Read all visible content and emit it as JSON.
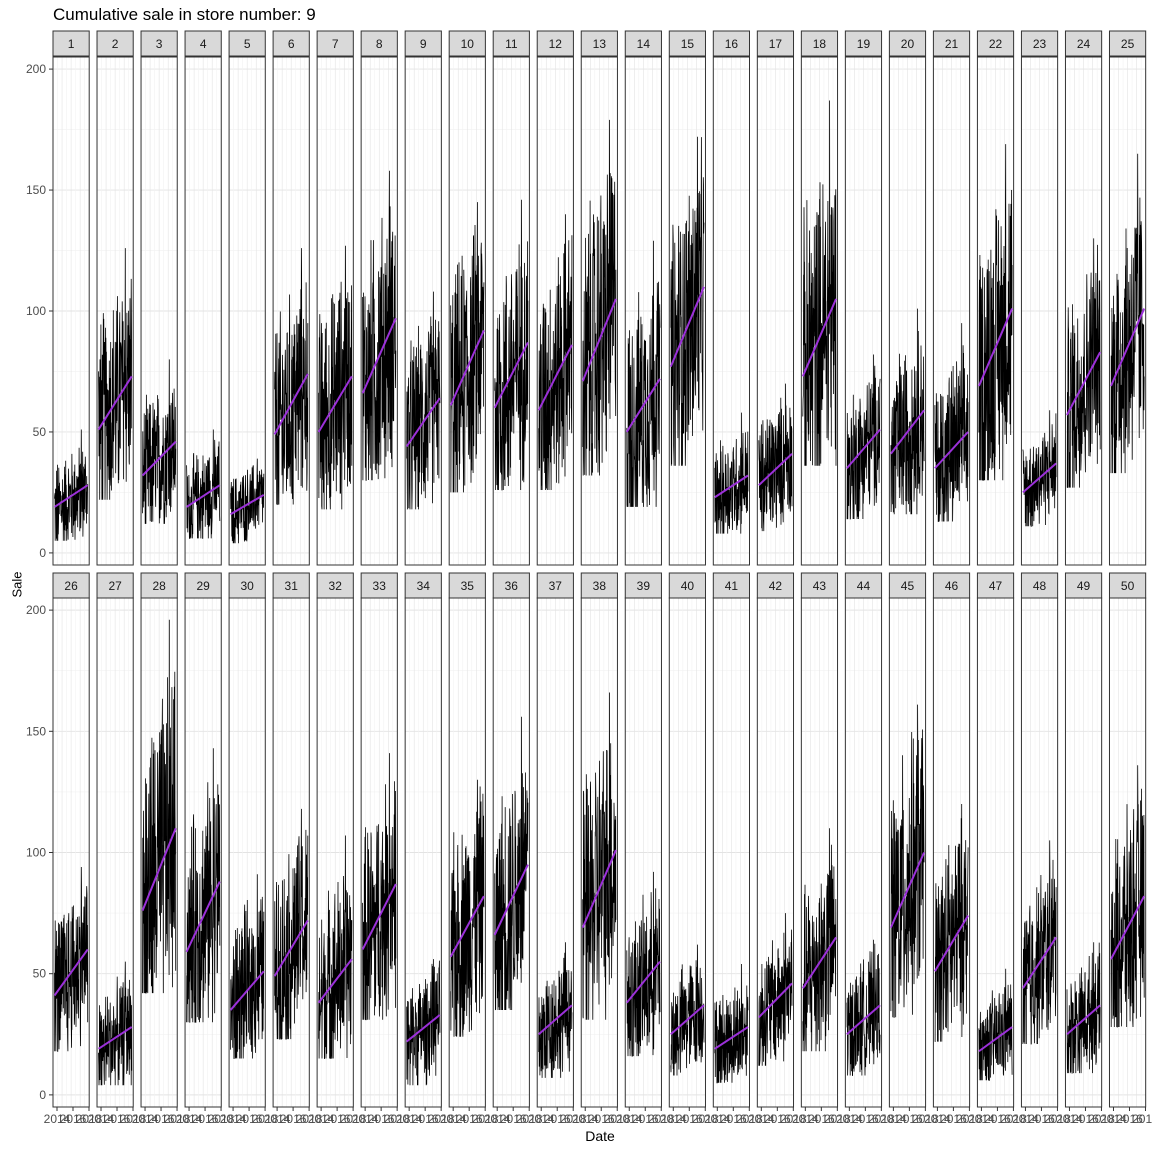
{
  "chart_data": {
    "type": "line",
    "title": "Cumulative sale in store number: 9",
    "xlabel": "Date",
    "ylabel": "Sale",
    "x_tick_labels": [
      "2014",
      "2016",
      "2018"
    ],
    "ylim": [
      -5,
      205
    ],
    "y_ticks": [
      0,
      50,
      100,
      150,
      200
    ],
    "grid": true,
    "facet_rows": 2,
    "facet_cols": 25,
    "raw_series_color": "#000000",
    "trend_color": "#9b30d9",
    "panels": [
      {
        "item": "1",
        "level": 22,
        "low": 5,
        "high": 51,
        "trend": [
          19,
          28
        ]
      },
      {
        "item": "2",
        "level": 62,
        "low": 22,
        "high": 126,
        "trend": [
          51,
          73
        ]
      },
      {
        "item": "3",
        "level": 38,
        "low": 12,
        "high": 80,
        "trend": [
          32,
          46
        ]
      },
      {
        "item": "4",
        "level": 23,
        "low": 6,
        "high": 51,
        "trend": [
          19,
          28
        ]
      },
      {
        "item": "5",
        "level": 20,
        "low": 4,
        "high": 39,
        "trend": [
          16,
          24
        ]
      },
      {
        "item": "6",
        "level": 60,
        "low": 20,
        "high": 126,
        "trend": [
          49,
          74
        ]
      },
      {
        "item": "7",
        "level": 62,
        "low": 18,
        "high": 127,
        "trend": [
          50,
          73
        ]
      },
      {
        "item": "8",
        "level": 80,
        "low": 30,
        "high": 158,
        "trend": [
          66,
          97
        ]
      },
      {
        "item": "9",
        "level": 55,
        "low": 18,
        "high": 108,
        "trend": [
          44,
          64
        ]
      },
      {
        "item": "10",
        "level": 75,
        "low": 25,
        "high": 145,
        "trend": [
          61,
          92
        ]
      },
      {
        "item": "11",
        "level": 72,
        "low": 26,
        "high": 146,
        "trend": [
          60,
          87
        ]
      },
      {
        "item": "12",
        "level": 72,
        "low": 26,
        "high": 140,
        "trend": [
          59,
          86
        ]
      },
      {
        "item": "13",
        "level": 88,
        "low": 32,
        "high": 179,
        "trend": [
          71,
          105
        ]
      },
      {
        "item": "14",
        "level": 60,
        "low": 19,
        "high": 129,
        "trend": [
          50,
          72
        ]
      },
      {
        "item": "15",
        "level": 92,
        "low": 36,
        "high": 172,
        "trend": [
          77,
          110
        ]
      },
      {
        "item": "16",
        "level": 27,
        "low": 8,
        "high": 58,
        "trend": [
          23,
          32
        ]
      },
      {
        "item": "17",
        "level": 35,
        "low": 9,
        "high": 70,
        "trend": [
          28,
          41
        ]
      },
      {
        "item": "18",
        "level": 88,
        "low": 36,
        "high": 187,
        "trend": [
          73,
          105
        ]
      },
      {
        "item": "19",
        "level": 42,
        "low": 14,
        "high": 82,
        "trend": [
          35,
          51
        ]
      },
      {
        "item": "20",
        "level": 50,
        "low": 16,
        "high": 101,
        "trend": [
          41,
          59
        ]
      },
      {
        "item": "21",
        "level": 42,
        "low": 13,
        "high": 95,
        "trend": [
          35,
          50
        ]
      },
      {
        "item": "22",
        "level": 85,
        "low": 30,
        "high": 169,
        "trend": [
          69,
          101
        ]
      },
      {
        "item": "23",
        "level": 31,
        "low": 11,
        "high": 59,
        "trend": [
          25,
          37
        ]
      },
      {
        "item": "24",
        "level": 70,
        "low": 27,
        "high": 130,
        "trend": [
          57,
          83
        ]
      },
      {
        "item": "25",
        "level": 85,
        "low": 33,
        "high": 165,
        "trend": [
          69,
          101
        ]
      },
      {
        "item": "26",
        "level": 50,
        "low": 18,
        "high": 94,
        "trend": [
          41,
          60
        ]
      },
      {
        "item": "27",
        "level": 23,
        "low": 4,
        "high": 55,
        "trend": [
          19,
          28
        ]
      },
      {
        "item": "28",
        "level": 93,
        "low": 42,
        "high": 196,
        "trend": [
          76,
          110
        ]
      },
      {
        "item": "29",
        "level": 73,
        "low": 30,
        "high": 143,
        "trend": [
          59,
          88
        ]
      },
      {
        "item": "30",
        "level": 44,
        "low": 15,
        "high": 91,
        "trend": [
          35,
          51
        ]
      },
      {
        "item": "31",
        "level": 60,
        "low": 23,
        "high": 118,
        "trend": [
          49,
          72
        ]
      },
      {
        "item": "32",
        "level": 47,
        "low": 15,
        "high": 107,
        "trend": [
          38,
          56
        ]
      },
      {
        "item": "33",
        "level": 73,
        "low": 31,
        "high": 141,
        "trend": [
          60,
          87
        ]
      },
      {
        "item": "34",
        "level": 27,
        "low": 4,
        "high": 56,
        "trend": [
          22,
          33
        ]
      },
      {
        "item": "35",
        "level": 69,
        "low": 24,
        "high": 130,
        "trend": [
          57,
          82
        ]
      },
      {
        "item": "36",
        "level": 80,
        "low": 35,
        "high": 156,
        "trend": [
          66,
          95
        ]
      },
      {
        "item": "37",
        "level": 30,
        "low": 7,
        "high": 63,
        "trend": [
          25,
          37
        ]
      },
      {
        "item": "38",
        "level": 85,
        "low": 31,
        "high": 166,
        "trend": [
          69,
          101
        ]
      },
      {
        "item": "39",
        "level": 45,
        "low": 16,
        "high": 92,
        "trend": [
          38,
          55
        ]
      },
      {
        "item": "40",
        "level": 31,
        "low": 8,
        "high": 62,
        "trend": [
          25,
          37
        ]
      },
      {
        "item": "41",
        "level": 23,
        "low": 5,
        "high": 54,
        "trend": [
          19,
          28
        ]
      },
      {
        "item": "42",
        "level": 38,
        "low": 12,
        "high": 75,
        "trend": [
          32,
          46
        ]
      },
      {
        "item": "43",
        "level": 54,
        "low": 18,
        "high": 110,
        "trend": [
          44,
          65
        ]
      },
      {
        "item": "44",
        "level": 31,
        "low": 8,
        "high": 64,
        "trend": [
          25,
          37
        ]
      },
      {
        "item": "45",
        "level": 85,
        "low": 32,
        "high": 161,
        "trend": [
          69,
          100
        ]
      },
      {
        "item": "46",
        "level": 62,
        "low": 22,
        "high": 120,
        "trend": [
          51,
          74
        ]
      },
      {
        "item": "47",
        "level": 23,
        "low": 6,
        "high": 52,
        "trend": [
          18,
          28
        ]
      },
      {
        "item": "48",
        "level": 54,
        "low": 21,
        "high": 105,
        "trend": [
          44,
          65
        ]
      },
      {
        "item": "49",
        "level": 31,
        "low": 9,
        "high": 63,
        "trend": [
          25,
          37
        ]
      },
      {
        "item": "50",
        "level": 68,
        "low": 28,
        "high": 136,
        "trend": [
          56,
          82
        ]
      }
    ]
  }
}
